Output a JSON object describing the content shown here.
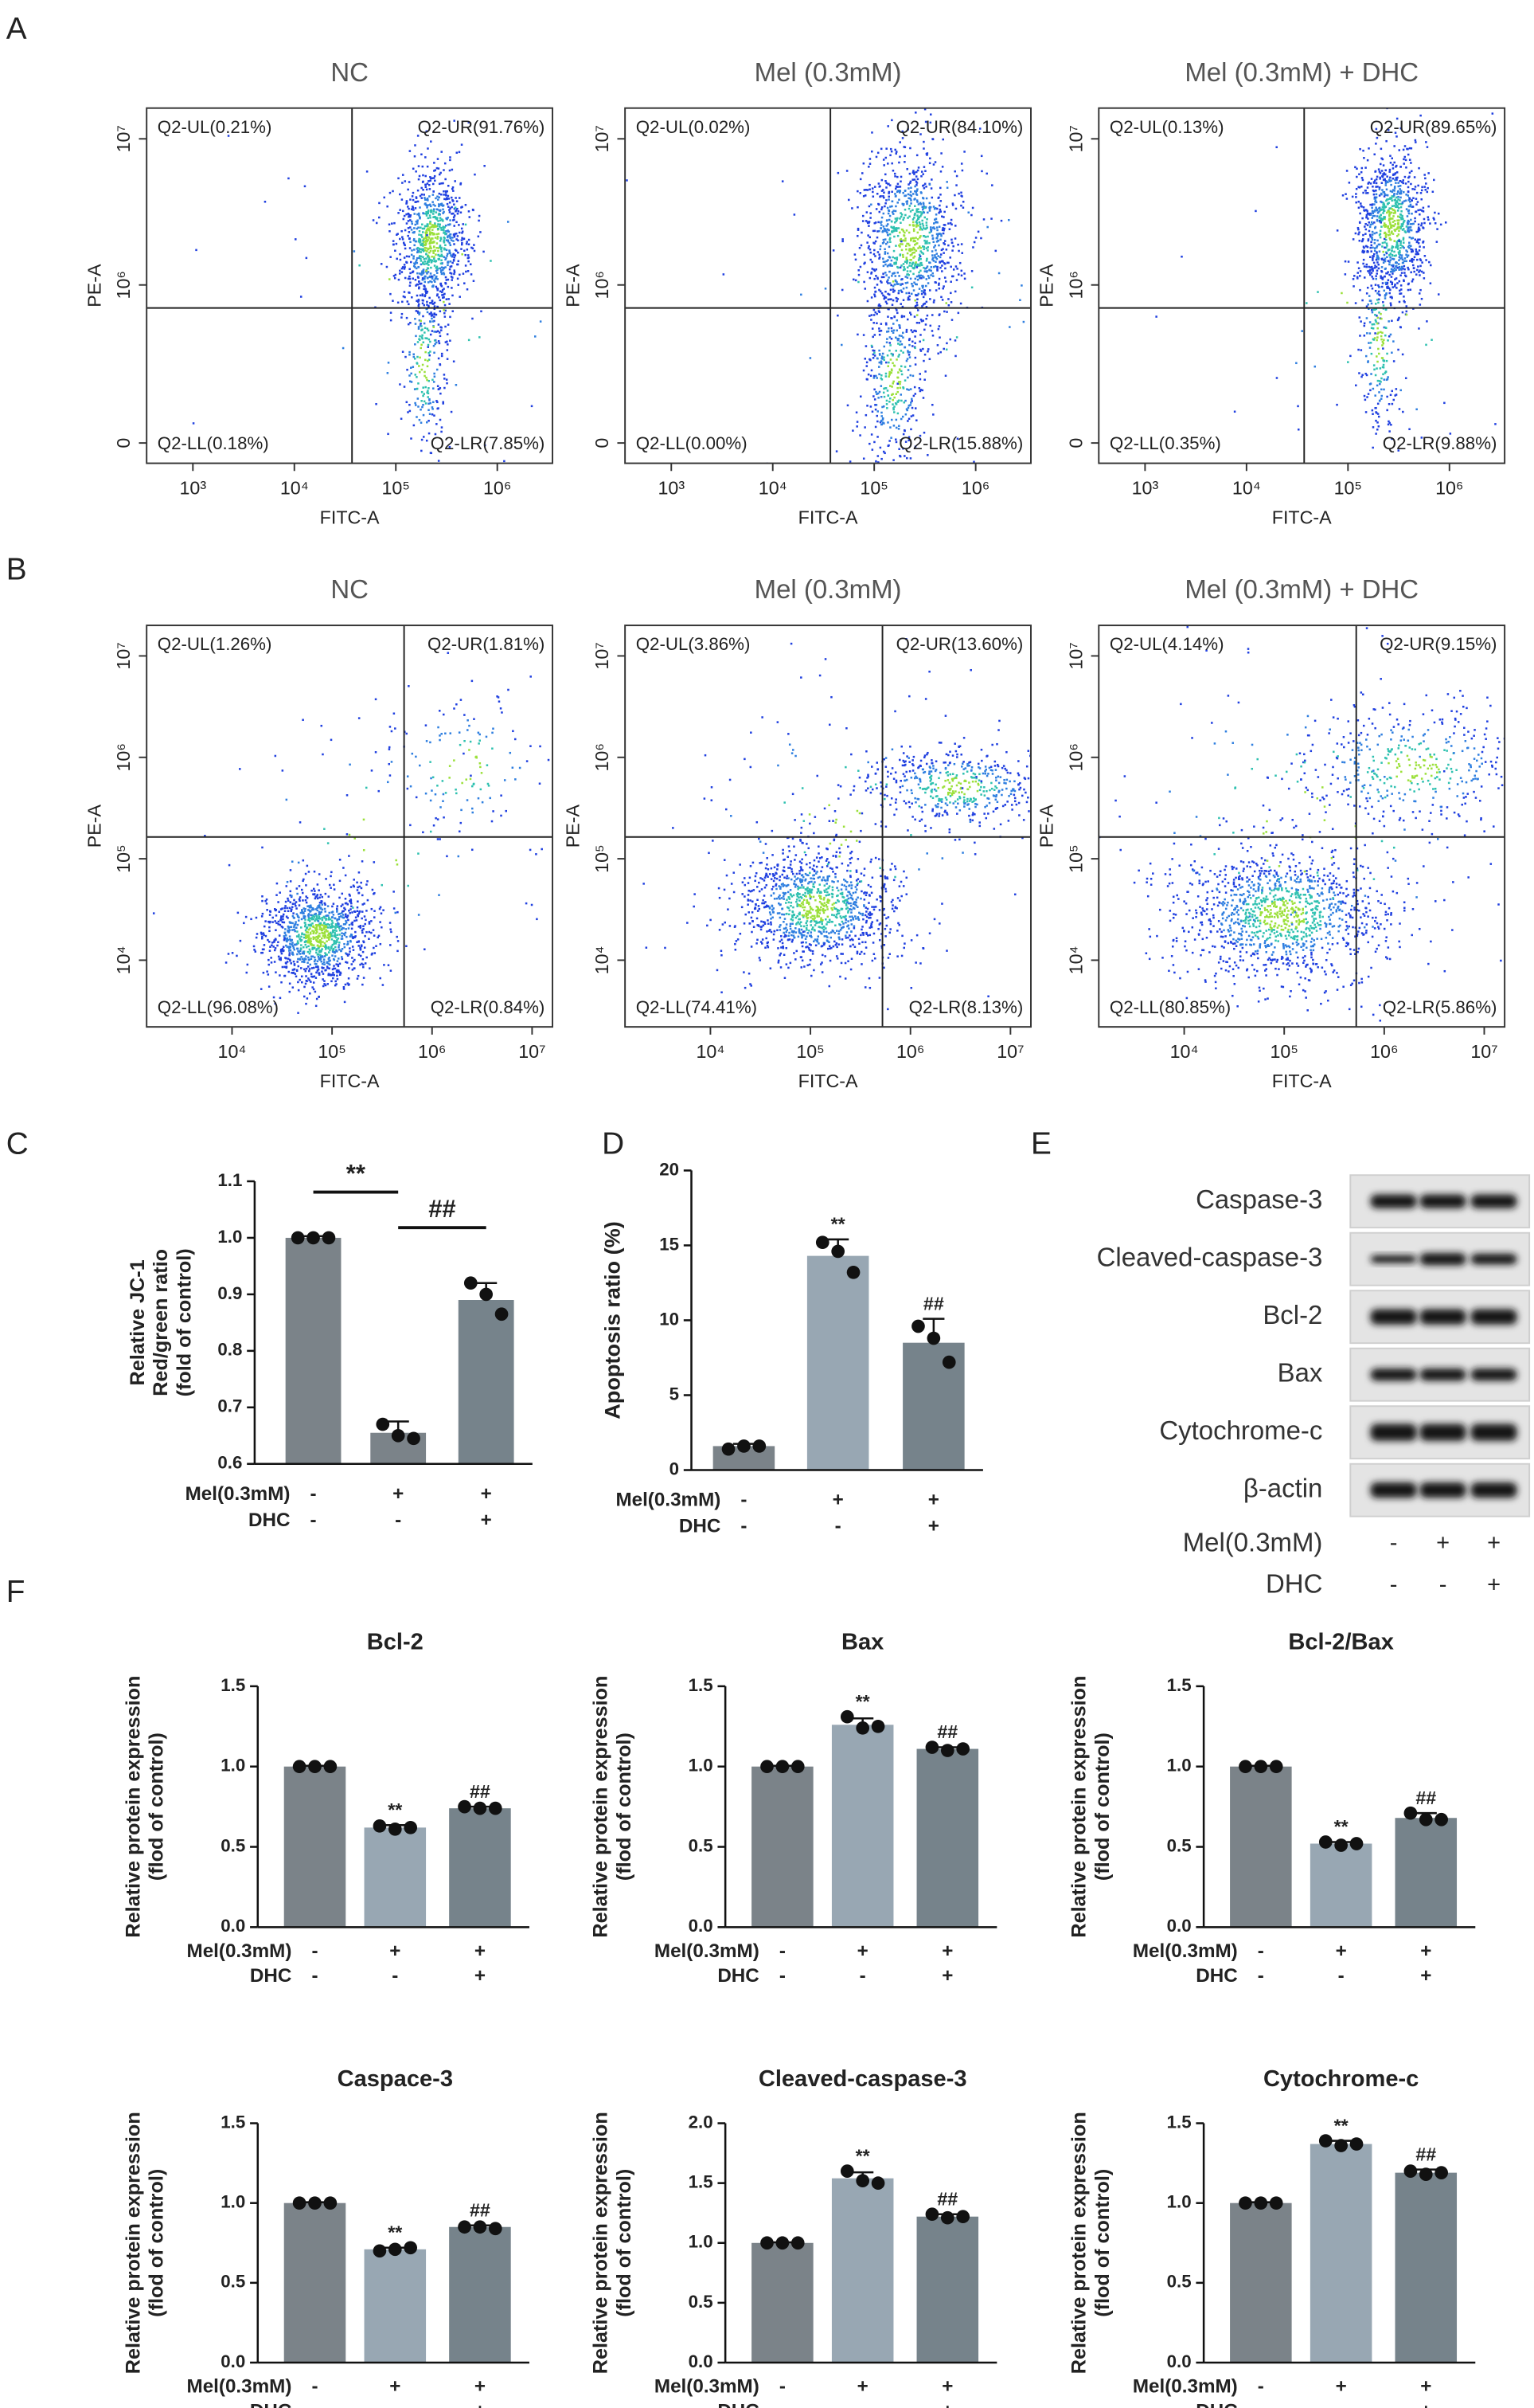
{
  "panel_labels": [
    "A",
    "B",
    "C",
    "D",
    "E",
    "F"
  ],
  "chart_data": [
    {
      "type": "flow",
      "title": "NC",
      "xlabel": "FITC-A",
      "ylabel": "PE-A",
      "xscale": "log",
      "yscale": "symlog",
      "linthresh": 100000,
      "xlim": [
        350,
        3500000
      ],
      "ylim": [
        -36000,
        16000000
      ],
      "xticks": [
        {
          "value": 1000,
          "label": "10³"
        },
        {
          "value": 10000,
          "label": "10⁴"
        },
        {
          "value": 100000,
          "label": "10⁵"
        },
        {
          "value": 1000000,
          "label": "10⁶"
        }
      ],
      "yticks": [
        0,
        {
          "value": 1000000,
          "label": "10⁶"
        },
        {
          "value": 10000000,
          "label": "10⁷"
        }
      ],
      "gate": {
        "x": 37000,
        "y": 676000
      },
      "quadrants": [
        "Q2-UL(0.21%)",
        "Q2-UR(91.76%)",
        "Q2-LL(0.18%)",
        "Q2-LR(7.85%)"
      ]
    },
    {
      "type": "flow",
      "title": "Mel (0.3mM)",
      "xlabel": "FITC-A",
      "ylabel": "PE-A",
      "xscale": "log",
      "yscale": "symlog",
      "linthresh": 100000,
      "xlim": [
        350,
        3500000
      ],
      "ylim": [
        -36000,
        16000000
      ],
      "xticks": [
        {
          "value": 1000,
          "label": "10³"
        },
        {
          "value": 10000,
          "label": "10⁴"
        },
        {
          "value": 100000,
          "label": "10⁵"
        },
        {
          "value": 1000000,
          "label": "10⁶"
        }
      ],
      "yticks": [
        0,
        {
          "value": 1000000,
          "label": "10⁶"
        },
        {
          "value": 10000000,
          "label": "10⁷"
        }
      ],
      "gate": {
        "x": 37000,
        "y": 676000
      },
      "quadrants": [
        "Q2-UL(0.02%)",
        "Q2-UR(84.10%)",
        "Q2-LL(0.00%)",
        "Q2-LR(15.88%)"
      ]
    },
    {
      "type": "flow",
      "title": "Mel (0.3mM) + DHC",
      "xlabel": "FITC-A",
      "ylabel": "PE-A",
      "xscale": "log",
      "yscale": "symlog",
      "linthresh": 100000,
      "xlim": [
        350,
        3500000
      ],
      "ylim": [
        -36000,
        16000000
      ],
      "xticks": [
        {
          "value": 1000,
          "label": "10³"
        },
        {
          "value": 10000,
          "label": "10⁴"
        },
        {
          "value": 100000,
          "label": "10⁵"
        },
        {
          "value": 1000000,
          "label": "10⁶"
        }
      ],
      "yticks": [
        0,
        {
          "value": 1000000,
          "label": "10⁶"
        },
        {
          "value": 10000000,
          "label": "10⁷"
        }
      ],
      "gate": {
        "x": 37000,
        "y": 676000
      },
      "quadrants": [
        "Q2-UL(0.13%)",
        "Q2-UR(89.65%)",
        "Q2-LL(0.35%)",
        "Q2-LR(9.88%)"
      ]
    },
    {
      "type": "flow",
      "title": "NC",
      "xlabel": "FITC-A",
      "ylabel": "PE-A",
      "xscale": "log",
      "yscale": "log",
      "xlim": [
        1400,
        16000000
      ],
      "ylim": [
        2200,
        20000000
      ],
      "xticks": [
        {
          "value": 10000,
          "label": "10⁴"
        },
        {
          "value": 100000,
          "label": "10⁵"
        },
        {
          "value": 1000000,
          "label": "10⁶"
        },
        {
          "value": 10000000,
          "label": "10⁷"
        }
      ],
      "yticks": [
        {
          "value": 10000,
          "label": "10⁴"
        },
        {
          "value": 100000,
          "label": "10⁵"
        },
        {
          "value": 1000000,
          "label": "10⁶"
        },
        {
          "value": 10000000,
          "label": "10⁷"
        }
      ],
      "gate": {
        "x": 525000,
        "y": 164000
      },
      "quadrants": [
        "Q2-UL(1.26%)",
        "Q2-UR(1.81%)",
        "Q2-LL(96.08%)",
        "Q2-LR(0.84%)"
      ]
    },
    {
      "type": "flow",
      "title": "Mel (0.3mM)",
      "xlabel": "FITC-A",
      "ylabel": "PE-A",
      "xscale": "log",
      "yscale": "log",
      "xlim": [
        1400,
        16000000
      ],
      "ylim": [
        2200,
        20000000
      ],
      "xticks": [
        {
          "value": 10000,
          "label": "10⁴"
        },
        {
          "value": 100000,
          "label": "10⁵"
        },
        {
          "value": 1000000,
          "label": "10⁶"
        },
        {
          "value": 10000000,
          "label": "10⁷"
        }
      ],
      "yticks": [
        {
          "value": 10000,
          "label": "10⁴"
        },
        {
          "value": 100000,
          "label": "10⁵"
        },
        {
          "value": 1000000,
          "label": "10⁶"
        },
        {
          "value": 10000000,
          "label": "10⁷"
        }
      ],
      "gate": {
        "x": 525000,
        "y": 164000
      },
      "quadrants": [
        "Q2-UL(3.86%)",
        "Q2-UR(13.60%)",
        "Q2-LL(74.41%)",
        "Q2-LR(8.13%)"
      ]
    },
    {
      "type": "flow",
      "title": "Mel (0.3mM) + DHC",
      "xlabel": "FITC-A",
      "ylabel": "PE-A",
      "xscale": "log",
      "yscale": "log",
      "xlim": [
        1400,
        16000000
      ],
      "ylim": [
        2200,
        20000000
      ],
      "xticks": [
        {
          "value": 10000,
          "label": "10⁴"
        },
        {
          "value": 100000,
          "label": "10⁵"
        },
        {
          "value": 1000000,
          "label": "10⁶"
        },
        {
          "value": 10000000,
          "label": "10⁷"
        }
      ],
      "yticks": [
        {
          "value": 10000,
          "label": "10⁴"
        },
        {
          "value": 100000,
          "label": "10⁵"
        },
        {
          "value": 1000000,
          "label": "10⁶"
        },
        {
          "value": 10000000,
          "label": "10⁷"
        }
      ],
      "gate": {
        "x": 525000,
        "y": 164000
      },
      "quadrants": [
        "Q2-UL(4.14%)",
        "Q2-UR(9.15%)",
        "Q2-LL(80.85%)",
        "Q2-LR(5.86%)"
      ]
    },
    {
      "type": "bar",
      "ylabel": [
        "Relative JC-1",
        "Red/green ratio",
        "(fold of control)"
      ],
      "ylim": [
        0.6,
        1.1
      ],
      "yticks": [
        0.6,
        0.7,
        0.8,
        0.9,
        {
          "value": 1,
          "label": "1.0"
        },
        1.1
      ],
      "values": [
        1.0,
        0.655,
        0.89
      ],
      "errors": [
        0.003,
        0.02,
        0.03
      ],
      "points": [
        [
          1.0,
          1.0,
          1.0
        ],
        [
          0.67,
          0.65,
          0.645
        ],
        [
          0.92,
          0.9,
          0.865
        ]
      ],
      "colors": [
        "#7b8389",
        "#7b8389",
        "#76838b"
      ],
      "significance": [
        null,
        null,
        null
      ],
      "comparisons": [
        {
          "label": "**",
          "from": 0,
          "to": 1
        },
        {
          "label": "##",
          "from": 1,
          "to": 2
        }
      ],
      "groups": [
        {
          "name": "Mel(0.3mM)",
          "signs": [
            "-",
            "+",
            "+"
          ]
        },
        {
          "name": "DHC",
          "signs": [
            "-",
            "-",
            "+"
          ]
        }
      ]
    },
    {
      "type": "bar",
      "ylabel": [
        "Apoptosis ratio (%)"
      ],
      "ylim": [
        0,
        20
      ],
      "yticks": [
        0,
        5,
        10,
        15,
        20
      ],
      "values": [
        1.6,
        14.3,
        8.5
      ],
      "errors": [
        0.15,
        1.1,
        1.6
      ],
      "points": [
        [
          1.4,
          1.6,
          1.6
        ],
        [
          15.2,
          14.6,
          13.2
        ],
        [
          9.6,
          8.8,
          7.2
        ]
      ],
      "colors": [
        "#7b8389",
        "#98a7b3",
        "#76838b"
      ],
      "significance": [
        null,
        "**",
        "##"
      ],
      "groups": [
        {
          "name": "Mel(0.3mM)",
          "signs": [
            "-",
            "+",
            "+"
          ]
        },
        {
          "name": "DHC",
          "signs": [
            "-",
            "-",
            "+"
          ]
        }
      ]
    },
    {
      "type": "bar",
      "title": "Bcl-2",
      "ylabel": [
        "Relative protein expression",
        "(flod of control)"
      ],
      "ylim": [
        0,
        1.5
      ],
      "yticks": [
        {
          "value": 0,
          "label": "0.0"
        },
        0.5,
        {
          "value": 1,
          "label": "1.0"
        },
        1.5
      ],
      "values": [
        1.0,
        0.62,
        0.74
      ],
      "errors": [
        0.005,
        0.015,
        0.01
      ],
      "points": [
        [
          1.0,
          1.0,
          1.0
        ],
        [
          0.63,
          0.61,
          0.62
        ],
        [
          0.75,
          0.74,
          0.74
        ]
      ],
      "colors": [
        "#7b8389",
        "#98a7b3",
        "#76838b"
      ],
      "significance": [
        null,
        "**",
        "##"
      ],
      "groups": [
        {
          "name": "Mel(0.3mM)",
          "signs": [
            "-",
            "+",
            "+"
          ]
        },
        {
          "name": "DHC",
          "signs": [
            "-",
            "-",
            "+"
          ]
        }
      ]
    },
    {
      "type": "bar",
      "title": "Bax",
      "ylabel": [
        "Relative protein expression",
        "(flod of control)"
      ],
      "ylim": [
        0,
        1.5
      ],
      "yticks": [
        {
          "value": 0,
          "label": "0.0"
        },
        0.5,
        {
          "value": 1,
          "label": "1.0"
        },
        1.5
      ],
      "values": [
        1.0,
        1.26,
        1.11
      ],
      "errors": [
        0.005,
        0.04,
        0.01
      ],
      "points": [
        [
          1.0,
          1.0,
          1.0
        ],
        [
          1.31,
          1.24,
          1.25
        ],
        [
          1.12,
          1.1,
          1.11
        ]
      ],
      "colors": [
        "#7b8389",
        "#98a7b3",
        "#76838b"
      ],
      "significance": [
        null,
        "**",
        "##"
      ],
      "groups": [
        {
          "name": "Mel(0.3mM)",
          "signs": [
            "-",
            "+",
            "+"
          ]
        },
        {
          "name": "DHC",
          "signs": [
            "-",
            "-",
            "+"
          ]
        }
      ]
    },
    {
      "type": "bar",
      "title": "Bcl-2/Bax",
      "ylabel": [
        "Relative protein expression",
        "(flod of control)"
      ],
      "ylim": [
        0,
        1.5
      ],
      "yticks": [
        {
          "value": 0,
          "label": "0.0"
        },
        0.5,
        {
          "value": 1,
          "label": "1.0"
        },
        1.5
      ],
      "values": [
        1.0,
        0.52,
        0.68
      ],
      "errors": [
        0.005,
        0.01,
        0.03
      ],
      "points": [
        [
          1.0,
          1.0,
          1.0
        ],
        [
          0.53,
          0.51,
          0.52
        ],
        [
          0.71,
          0.67,
          0.67
        ]
      ],
      "colors": [
        "#7b8389",
        "#98a7b3",
        "#76838b"
      ],
      "significance": [
        null,
        "**",
        "##"
      ],
      "groups": [
        {
          "name": "Mel(0.3mM)",
          "signs": [
            "-",
            "+",
            "+"
          ]
        },
        {
          "name": "DHC",
          "signs": [
            "-",
            "-",
            "+"
          ]
        }
      ]
    },
    {
      "type": "bar",
      "title": "Caspace-3",
      "ylabel": [
        "Relative protein expression",
        "(flod of control)"
      ],
      "ylim": [
        0,
        1.5
      ],
      "yticks": [
        {
          "value": 0,
          "label": "0.0"
        },
        0.5,
        {
          "value": 1,
          "label": "1.0"
        },
        1.5
      ],
      "values": [
        1.0,
        0.71,
        0.85
      ],
      "errors": [
        0.005,
        0.01,
        0.01
      ],
      "points": [
        [
          1.0,
          1.0,
          1.0
        ],
        [
          0.7,
          0.71,
          0.72
        ],
        [
          0.85,
          0.85,
          0.84
        ]
      ],
      "colors": [
        "#7b8389",
        "#98a7b3",
        "#76838b"
      ],
      "significance": [
        null,
        "**",
        "##"
      ],
      "groups": [
        {
          "name": "Mel(0.3mM)",
          "signs": [
            "-",
            "+",
            "+"
          ]
        },
        {
          "name": "DHC",
          "signs": [
            "-",
            "-",
            "+"
          ]
        }
      ]
    },
    {
      "type": "bar",
      "title": "Cleaved-caspase-3",
      "ylabel": [
        "Relative protein expression",
        "(flod of control)"
      ],
      "ylim": [
        0,
        2
      ],
      "yticks": [
        {
          "value": 0,
          "label": "0.0"
        },
        0.5,
        {
          "value": 1,
          "label": "1.0"
        },
        1.5,
        {
          "value": 2,
          "label": "2.0"
        }
      ],
      "values": [
        1.0,
        1.54,
        1.22
      ],
      "errors": [
        0.005,
        0.05,
        0.02
      ],
      "points": [
        [
          1.0,
          1.0,
          1.0
        ],
        [
          1.6,
          1.52,
          1.5
        ],
        [
          1.24,
          1.21,
          1.22
        ]
      ],
      "colors": [
        "#7b8389",
        "#98a7b3",
        "#76838b"
      ],
      "significance": [
        null,
        "**",
        "##"
      ],
      "groups": [
        {
          "name": "Mel(0.3mM)",
          "signs": [
            "-",
            "+",
            "+"
          ]
        },
        {
          "name": "DHC",
          "signs": [
            "-",
            "-",
            "+"
          ]
        }
      ]
    },
    {
      "type": "bar",
      "title": "Cytochrome-c",
      "ylabel": [
        "Relative protein expression",
        "(flod of control)"
      ],
      "ylim": [
        0,
        1.5
      ],
      "yticks": [
        {
          "value": 0,
          "label": "0.0"
        },
        0.5,
        {
          "value": 1,
          "label": "1.0"
        },
        1.5
      ],
      "values": [
        1.0,
        1.37,
        1.19
      ],
      "errors": [
        0.005,
        0.02,
        0.02
      ],
      "points": [
        [
          1.0,
          1.0,
          1.0
        ],
        [
          1.39,
          1.36,
          1.37
        ],
        [
          1.2,
          1.18,
          1.19
        ]
      ],
      "colors": [
        "#7b8389",
        "#98a7b3",
        "#76838b"
      ],
      "significance": [
        null,
        "**",
        "##"
      ],
      "groups": [
        {
          "name": "Mel(0.3mM)",
          "signs": [
            "-",
            "+",
            "+"
          ]
        },
        {
          "name": "DHC",
          "signs": [
            "-",
            "-",
            "+"
          ]
        }
      ]
    }
  ],
  "blot": {
    "proteins": [
      "Caspase-3",
      "Cleaved-caspase-3",
      "Bcl-2",
      "Bax",
      "Cytochrome-c",
      "β-actin"
    ],
    "groups": [
      {
        "name": "Mel(0.3mM)",
        "signs": [
          "-",
          "+",
          "+"
        ]
      },
      {
        "name": "DHC",
        "signs": [
          "-",
          "-",
          "+"
        ]
      }
    ]
  }
}
